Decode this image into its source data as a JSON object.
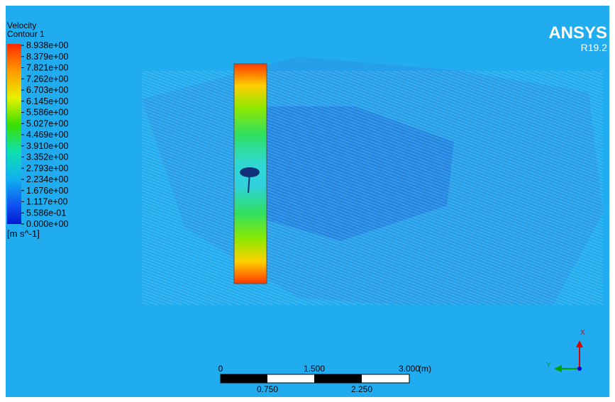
{
  "legend": {
    "title": "Velocity",
    "subtitle": "Contour 1",
    "labels": [
      "8.938e+00",
      "8.379e+00",
      "7.821e+00",
      "7.262e+00",
      "6.703e+00",
      "6.145e+00",
      "5.586e+00",
      "5.027e+00",
      "4.469e+00",
      "3.910e+00",
      "3.352e+00",
      "2.793e+00",
      "2.234e+00",
      "1.676e+00",
      "1.117e+00",
      "5.586e-01",
      "0.000e+00"
    ],
    "unit": "[m s^-1]"
  },
  "brand": {
    "name": "ANSYS",
    "version": "R19.2"
  },
  "scale_bar": {
    "top_labels": [
      "0",
      "1.500",
      "3.000"
    ],
    "unit": "(m)",
    "bottom_labels": [
      "0.750",
      "2.250"
    ]
  },
  "triad": {
    "x": "X",
    "y": "Y"
  }
}
